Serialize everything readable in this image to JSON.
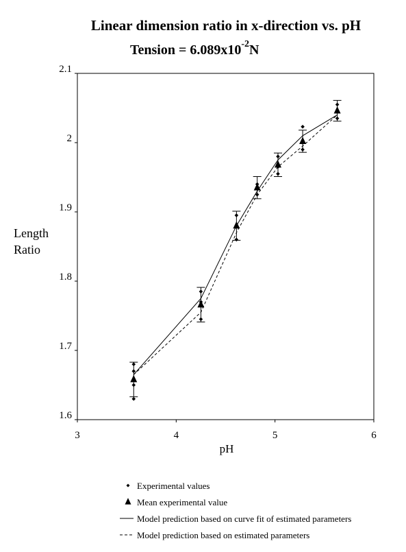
{
  "chart_data": {
    "type": "line",
    "title": "Linear dimension ratio in x-direction vs. pH",
    "subtitle": "Tension = 6.089x10",
    "subtitle_exponent": "-2",
    "subtitle_unit": "N",
    "xlabel": "pH",
    "ylabel": [
      "Length",
      "Ratio"
    ],
    "xlim": [
      3,
      6
    ],
    "xticks": [
      3,
      4,
      5,
      6
    ],
    "ylim": [
      1.6,
      2.1
    ],
    "yticks": [
      1.6,
      1.7,
      1.8,
      1.9,
      2,
      2.1
    ],
    "grid": false,
    "legend": "bottom",
    "series": [
      {
        "name": "Experimental values",
        "type": "scatter",
        "marker": "diamond",
        "color": "#000000",
        "x": [
          3.57,
          3.57,
          3.57,
          3.57,
          4.25,
          4.25,
          4.25,
          4.61,
          4.61,
          4.61,
          4.82,
          4.82,
          5.03,
          5.03,
          5.03,
          5.28,
          5.28,
          5.28,
          5.63,
          5.63,
          5.63
        ],
        "values": [
          1.63,
          1.68,
          1.67,
          1.65,
          1.745,
          1.785,
          1.77,
          1.86,
          1.895,
          1.88,
          1.925,
          1.94,
          1.955,
          1.98,
          1.965,
          1.99,
          2.023,
          2.0,
          2.035,
          2.055,
          2.045
        ]
      },
      {
        "name": "Mean experimental value",
        "type": "errorbar",
        "marker": "triangle",
        "color": "#000000",
        "x": [
          3.57,
          4.25,
          4.61,
          4.82,
          5.03,
          5.28,
          5.63
        ],
        "values": [
          1.658,
          1.766,
          1.88,
          1.935,
          1.968,
          2.002,
          2.046
        ],
        "errors": [
          0.025,
          0.025,
          0.021,
          0.016,
          0.017,
          0.016,
          0.015
        ]
      },
      {
        "name": "Model prediction based on curve fit of estimated parameters",
        "type": "line",
        "dash": "solid",
        "color": "#000000",
        "x": [
          3.57,
          4.25,
          4.61,
          4.82,
          5.03,
          5.28,
          5.63
        ],
        "values": [
          1.665,
          1.775,
          1.88,
          1.93,
          1.975,
          2.01,
          2.04
        ]
      },
      {
        "name": "Model prediction based on estimated parameters",
        "type": "line",
        "dash": "dashed",
        "color": "#000000",
        "x": [
          3.57,
          4.25,
          4.61,
          4.82,
          5.03,
          5.28,
          5.63
        ],
        "values": [
          1.665,
          1.755,
          1.87,
          1.925,
          1.965,
          1.995,
          2.04
        ]
      }
    ]
  }
}
